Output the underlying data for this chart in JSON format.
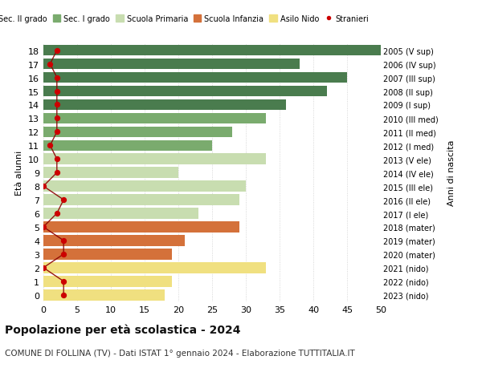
{
  "ages": [
    18,
    17,
    16,
    15,
    14,
    13,
    12,
    11,
    10,
    9,
    8,
    7,
    6,
    5,
    4,
    3,
    2,
    1,
    0
  ],
  "right_labels": [
    "2005 (V sup)",
    "2006 (IV sup)",
    "2007 (III sup)",
    "2008 (II sup)",
    "2009 (I sup)",
    "2010 (III med)",
    "2011 (II med)",
    "2012 (I med)",
    "2013 (V ele)",
    "2014 (IV ele)",
    "2015 (III ele)",
    "2016 (II ele)",
    "2017 (I ele)",
    "2018 (mater)",
    "2019 (mater)",
    "2020 (mater)",
    "2021 (nido)",
    "2022 (nido)",
    "2023 (nido)"
  ],
  "bar_values": [
    50,
    38,
    45,
    42,
    36,
    33,
    28,
    25,
    33,
    20,
    30,
    29,
    23,
    29,
    21,
    19,
    33,
    19,
    18
  ],
  "bar_colors": [
    "#4a7c4e",
    "#4a7c4e",
    "#4a7c4e",
    "#4a7c4e",
    "#4a7c4e",
    "#7aab6e",
    "#7aab6e",
    "#7aab6e",
    "#c8ddb0",
    "#c8ddb0",
    "#c8ddb0",
    "#c8ddb0",
    "#c8ddb0",
    "#d4713a",
    "#d4713a",
    "#d4713a",
    "#f0e080",
    "#f0e080",
    "#f0e080"
  ],
  "stranieri_values": [
    2,
    1,
    2,
    2,
    2,
    2,
    2,
    1,
    2,
    2,
    0,
    3,
    2,
    0,
    3,
    3,
    0,
    3,
    3
  ],
  "legend_labels": [
    "Sec. II grado",
    "Sec. I grado",
    "Scuola Primaria",
    "Scuola Infanzia",
    "Asilo Nido",
    "Stranieri"
  ],
  "legend_colors": [
    "#4a7c4e",
    "#7aab6e",
    "#c8ddb0",
    "#d4713a",
    "#f0e080",
    "#cc0000"
  ],
  "title": "Popolazione per età scolastica - 2024",
  "subtitle": "COMUNE DI FOLLINA (TV) - Dati ISTAT 1° gennaio 2024 - Elaborazione TUTTITALIA.IT",
  "ylabel_left": "Età alunni",
  "ylabel_right": "Anni di nascita",
  "xlim": [
    0,
    50
  ],
  "xticks": [
    0,
    5,
    10,
    15,
    20,
    25,
    30,
    35,
    40,
    45,
    50
  ],
  "background_color": "#ffffff"
}
